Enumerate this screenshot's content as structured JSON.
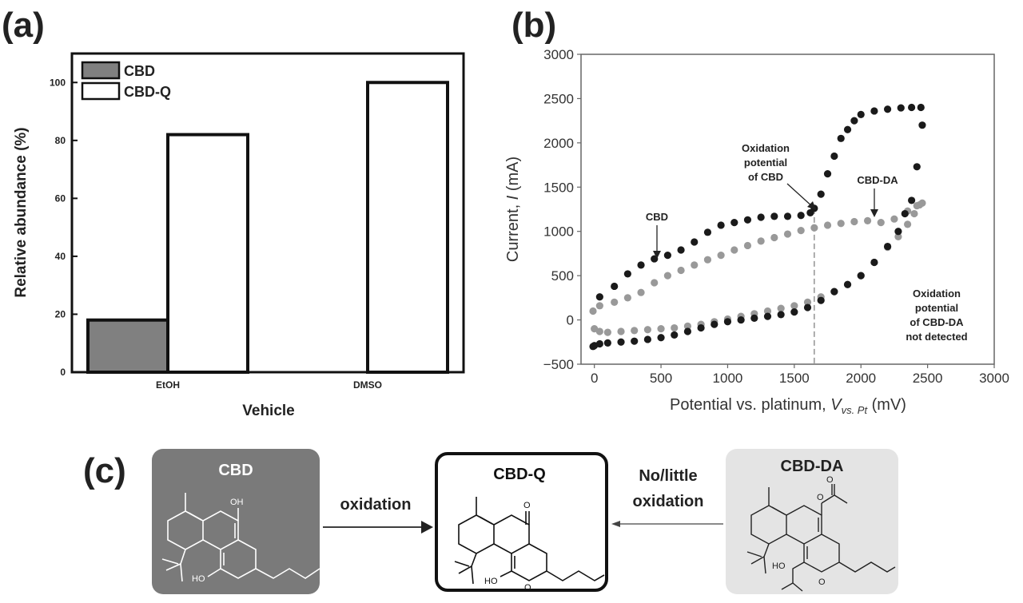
{
  "panels": {
    "a": "(a)",
    "b": "(b)",
    "c": "(c)"
  },
  "chart_data": [
    {
      "type": "bar",
      "panel": "(a)",
      "categories": [
        "EtOH",
        "DMSO"
      ],
      "series": [
        {
          "name": "CBD",
          "values": [
            18,
            0
          ],
          "color": "#808080"
        },
        {
          "name": "CBD-Q",
          "values": [
            82,
            100
          ],
          "color": "#ffffff"
        }
      ],
      "xlabel": "Vehicle",
      "ylabel": "Relative abundance (%)",
      "ylim": [
        0,
        110
      ],
      "yticks": [
        0,
        20,
        40,
        60,
        80,
        100
      ],
      "legend": "top-left",
      "grid": false
    },
    {
      "type": "scatter",
      "panel": "(b)",
      "xlabel_main": "Potential vs. platinum, ",
      "xlabel_var": "V",
      "xlabel_sub": "vs. Pt",
      "xlabel_unit": " (mV)",
      "ylabel_main": "Current, ",
      "ylabel_var": "I",
      "ylabel_unit": " (mA)",
      "xlim": [
        -100,
        3000
      ],
      "ylim": [
        -500,
        3000
      ],
      "xticks": [
        0,
        500,
        1000,
        1500,
        2000,
        2500,
        3000
      ],
      "yticks": [
        -500,
        0,
        500,
        1000,
        1500,
        2000,
        2500,
        3000
      ],
      "grid": false,
      "dashed_line_x": 1650,
      "series": [
        {
          "name": "CBD",
          "color": "#1a1a1a",
          "forward": [
            [
              -10,
              -300
            ],
            [
              40,
              260
            ],
            [
              150,
              380
            ],
            [
              250,
              520
            ],
            [
              350,
              620
            ],
            [
              450,
              690
            ],
            [
              550,
              730
            ],
            [
              650,
              790
            ],
            [
              750,
              880
            ],
            [
              850,
              990
            ],
            [
              950,
              1070
            ],
            [
              1050,
              1100
            ],
            [
              1150,
              1130
            ],
            [
              1250,
              1160
            ],
            [
              1350,
              1170
            ],
            [
              1450,
              1170
            ],
            [
              1550,
              1180
            ],
            [
              1620,
              1210
            ],
            [
              1650,
              1260
            ],
            [
              1700,
              1420
            ],
            [
              1750,
              1650
            ],
            [
              1800,
              1850
            ],
            [
              1850,
              2050
            ],
            [
              1900,
              2150
            ],
            [
              1950,
              2250
            ],
            [
              2000,
              2320
            ],
            [
              2100,
              2360
            ],
            [
              2200,
              2380
            ],
            [
              2300,
              2395
            ],
            [
              2380,
              2400
            ],
            [
              2450,
              2400
            ],
            [
              2460,
              2200
            ]
          ],
          "reverse": [
            [
              2420,
              1730
            ],
            [
              2380,
              1350
            ],
            [
              2330,
              1200
            ],
            [
              2280,
              1000
            ],
            [
              2200,
              830
            ],
            [
              2100,
              650
            ],
            [
              2000,
              500
            ],
            [
              1900,
              400
            ],
            [
              1800,
              320
            ],
            [
              1700,
              220
            ],
            [
              1600,
              140
            ],
            [
              1500,
              90
            ],
            [
              1400,
              60
            ],
            [
              1300,
              40
            ],
            [
              1200,
              20
            ],
            [
              1100,
              0
            ],
            [
              1000,
              -20
            ],
            [
              900,
              -50
            ],
            [
              800,
              -90
            ],
            [
              700,
              -130
            ],
            [
              600,
              -170
            ],
            [
              500,
              -200
            ],
            [
              400,
              -220
            ],
            [
              300,
              -240
            ],
            [
              200,
              -250
            ],
            [
              100,
              -260
            ],
            [
              40,
              -270
            ],
            [
              0,
              -290
            ]
          ]
        },
        {
          "name": "CBD-DA",
          "color": "#999999",
          "forward": [
            [
              -10,
              100
            ],
            [
              40,
              160
            ],
            [
              150,
              200
            ],
            [
              250,
              250
            ],
            [
              350,
              310
            ],
            [
              450,
              420
            ],
            [
              550,
              500
            ],
            [
              650,
              560
            ],
            [
              750,
              620
            ],
            [
              850,
              680
            ],
            [
              950,
              730
            ],
            [
              1050,
              790
            ],
            [
              1150,
              840
            ],
            [
              1250,
              890
            ],
            [
              1350,
              930
            ],
            [
              1450,
              970
            ],
            [
              1550,
              1010
            ],
            [
              1650,
              1040
            ],
            [
              1750,
              1070
            ],
            [
              1850,
              1090
            ],
            [
              1950,
              1110
            ],
            [
              2050,
              1120
            ],
            [
              2150,
              1100
            ],
            [
              2250,
              1140
            ],
            [
              2350,
              1230
            ],
            [
              2420,
              1290
            ],
            [
              2460,
              1320
            ]
          ],
          "reverse": [
            [
              2440,
              1300
            ],
            [
              2400,
              1200
            ],
            [
              2350,
              1080
            ],
            [
              2280,
              940
            ],
            [
              2200,
              820
            ],
            [
              2100,
              650
            ],
            [
              2000,
              500
            ],
            [
              1900,
              400
            ],
            [
              1800,
              320
            ],
            [
              1700,
              260
            ],
            [
              1600,
              200
            ],
            [
              1500,
              160
            ],
            [
              1400,
              130
            ],
            [
              1300,
              100
            ],
            [
              1200,
              70
            ],
            [
              1100,
              40
            ],
            [
              1000,
              10
            ],
            [
              900,
              -20
            ],
            [
              800,
              -50
            ],
            [
              700,
              -70
            ],
            [
              600,
              -90
            ],
            [
              500,
              -100
            ],
            [
              400,
              -110
            ],
            [
              300,
              -120
            ],
            [
              200,
              -130
            ],
            [
              100,
              -140
            ],
            [
              40,
              -130
            ],
            [
              0,
              -100
            ]
          ]
        }
      ],
      "annotations": {
        "cbd": "CBD",
        "ox1": "Oxidation",
        "ox2": "potential",
        "ox3": "of CBD",
        "cbdda": "CBD-DA",
        "nd1": "Oxidation",
        "nd2": "potential",
        "nd3": "of CBD-DA",
        "nd4": "not detected"
      }
    }
  ],
  "scheme": {
    "cbd_title": "CBD",
    "cbdq_title": "CBD-Q",
    "cbdda_title": "CBD-DA",
    "arrow_left_label": "oxidation",
    "arrow_right_label_1": "No/little",
    "arrow_right_label_2": "oxidation",
    "atom_oh": "OH",
    "atom_ho": "HO",
    "atom_o": "O"
  },
  "colors": {
    "dark_box": "#7a7a7a",
    "light_box": "#e4e4e4",
    "ink": "#222222"
  }
}
